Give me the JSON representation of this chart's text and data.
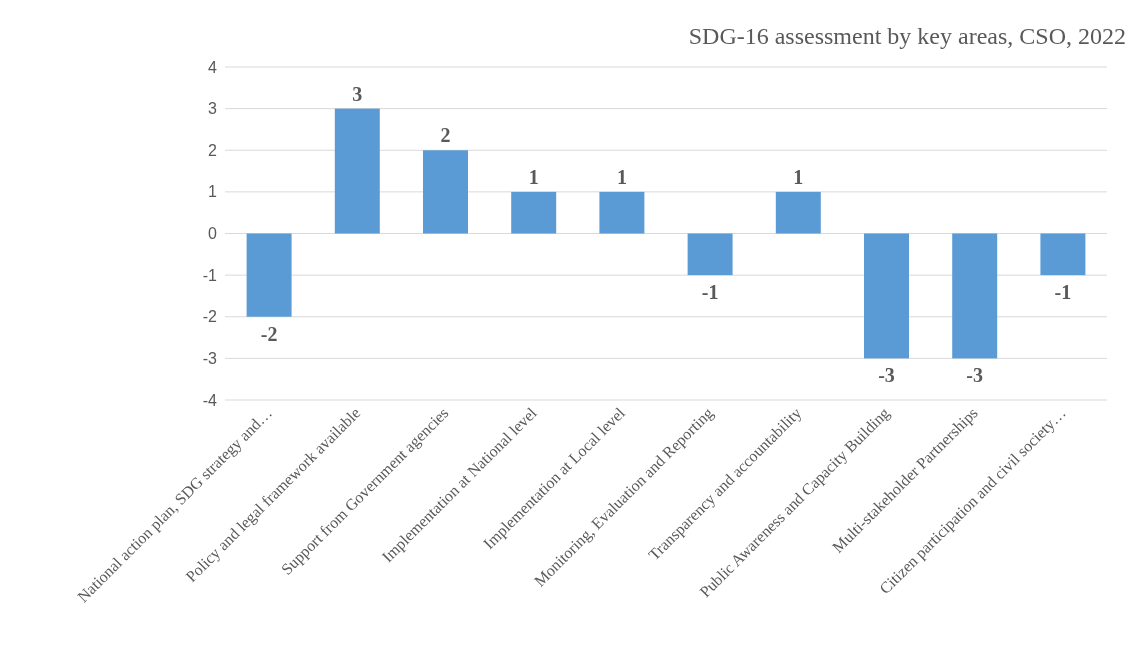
{
  "chart_data": {
    "type": "bar",
    "title": "SDG-16 assessment by key areas, CSO, 2022",
    "categories": [
      "National action plan, SDG strategy and…",
      "Policy and legal framework available",
      "Support from Government agencies",
      "Implementation at National level",
      "Implementation at Local level",
      "Monitoring, Evaluation and Reporting",
      "Transparency and accountability",
      "Public Awareness and Capacity Building",
      "Multi-stakeholder Partnerships",
      "Citizen participation and  civil society…"
    ],
    "values": [
      -2,
      3,
      2,
      1,
      1,
      -1,
      1,
      -3,
      -3,
      -1
    ],
    "color": "#5b9bd5",
    "ylim": [
      -4,
      4
    ],
    "yticks": [
      -4,
      -3,
      -2,
      -1,
      0,
      1,
      2,
      3,
      4
    ],
    "grid": "y",
    "data_labels": true
  }
}
